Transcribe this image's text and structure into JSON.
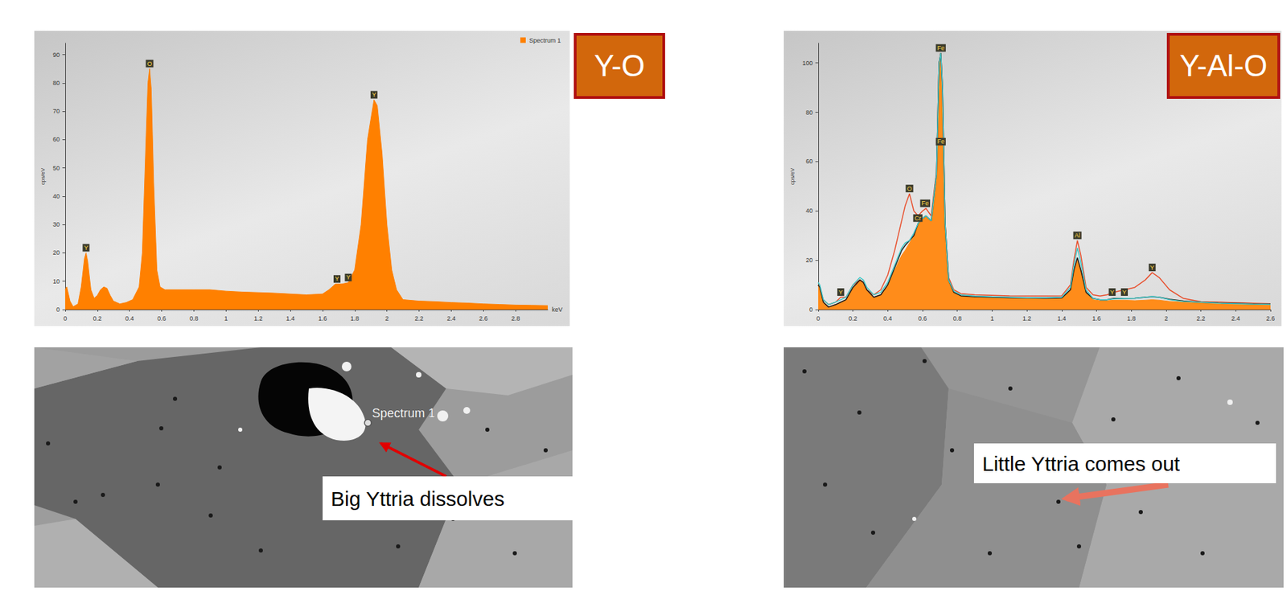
{
  "chart_data": [
    {
      "type": "line",
      "title": "Y-O",
      "x_label": "keV",
      "y_label": "cps/eV",
      "x": [
        0,
        0.01,
        0.03,
        0.05,
        0.08,
        0.1,
        0.12,
        0.13,
        0.14,
        0.16,
        0.18,
        0.2,
        0.22,
        0.24,
        0.26,
        0.28,
        0.3,
        0.34,
        0.38,
        0.42,
        0.46,
        0.48,
        0.5,
        0.515,
        0.525,
        0.535,
        0.55,
        0.57,
        0.59,
        0.62,
        0.7,
        0.8,
        0.9,
        1.0,
        1.1,
        1.2,
        1.3,
        1.4,
        1.5,
        1.6,
        1.64,
        1.68,
        1.72,
        1.76,
        1.8,
        1.84,
        1.88,
        1.92,
        1.94,
        1.97,
        2.0,
        2.03,
        2.06,
        2.1,
        2.2,
        2.3,
        2.4,
        2.5,
        2.6,
        2.7,
        2.8,
        2.9,
        3.0
      ],
      "series": [
        {
          "name": "Spectrum 1",
          "color": "#ff8000",
          "type": "area",
          "values": [
            7,
            8,
            3,
            1,
            2,
            8,
            18,
            20,
            17,
            7,
            4,
            5,
            7,
            8,
            7.5,
            5,
            3,
            2,
            2.5,
            3.5,
            8,
            20,
            55,
            80,
            85,
            78,
            45,
            14,
            8,
            7,
            7,
            7,
            7,
            6.5,
            6.2,
            6,
            5.8,
            5.5,
            5.2,
            5.5,
            7,
            9,
            9,
            9.5,
            14,
            30,
            60,
            74,
            72,
            55,
            30,
            14,
            7,
            3.5,
            3,
            2.8,
            2.5,
            2.3,
            2,
            1.8,
            1.6,
            1.5,
            1.4
          ]
        }
      ],
      "xlim": [
        0,
        3
      ],
      "xticks": [
        0,
        0.2,
        0.4,
        0.6,
        0.8,
        1,
        1.2,
        1.4,
        1.6,
        1.8,
        2,
        2.2,
        2.4,
        2.6,
        2.8
      ],
      "ylim": [
        0,
        94
      ],
      "yticks": [
        0,
        10,
        20,
        30,
        40,
        50,
        60,
        70,
        80,
        90
      ],
      "grid": false,
      "legend": "upper right",
      "peak_labels": [
        {
          "x": 0.13,
          "y": 20,
          "label": "Y"
        },
        {
          "x": 0.525,
          "y": 85,
          "label": "O"
        },
        {
          "x": 1.69,
          "y": 9,
          "label": "Y"
        },
        {
          "x": 1.76,
          "y": 9.5,
          "label": "Y"
        },
        {
          "x": 1.92,
          "y": 74,
          "label": "Y"
        }
      ]
    },
    {
      "type": "line",
      "title": "Y-Al-O",
      "y_label": "cps/eV",
      "x": [
        0,
        0.01,
        0.03,
        0.06,
        0.1,
        0.13,
        0.16,
        0.2,
        0.24,
        0.26,
        0.28,
        0.32,
        0.36,
        0.4,
        0.44,
        0.48,
        0.5,
        0.525,
        0.55,
        0.575,
        0.6,
        0.62,
        0.65,
        0.68,
        0.695,
        0.705,
        0.715,
        0.73,
        0.75,
        0.78,
        0.82,
        0.9,
        1.0,
        1.1,
        1.2,
        1.3,
        1.4,
        1.45,
        1.47,
        1.49,
        1.51,
        1.54,
        1.58,
        1.62,
        1.66,
        1.7,
        1.76,
        1.82,
        1.88,
        1.92,
        1.96,
        2.02,
        2.1,
        2.2,
        2.3,
        2.4,
        2.5,
        2.6
      ],
      "series": [
        {
          "color": "#ff8c1a",
          "type": "area",
          "values": [
            10,
            9,
            3,
            1,
            2,
            3,
            4,
            9,
            12,
            11,
            8,
            5,
            6,
            10,
            16,
            22,
            24,
            27,
            30,
            35,
            37,
            38,
            36,
            55,
            100,
            104,
            90,
            35,
            12,
            7,
            5.5,
            5,
            4.8,
            4.6,
            4.5,
            4.4,
            4.5,
            8,
            15,
            20,
            16,
            7,
            4,
            3.6,
            3.6,
            3.8,
            3.8,
            3.6,
            3.8,
            4,
            3.8,
            3.3,
            3,
            2.7,
            2.5,
            2.3,
            2.1,
            2
          ]
        },
        {
          "color": "#e8502e",
          "type": "line",
          "values": [
            10,
            9,
            4,
            2,
            3,
            5,
            5,
            10,
            12,
            11,
            8,
            6,
            8,
            14,
            24,
            36,
            42,
            47,
            40,
            38,
            40,
            41,
            38,
            56,
            100,
            104,
            88,
            35,
            13,
            8,
            6.5,
            6,
            5.8,
            5.6,
            5.5,
            5.5,
            5.6,
            10,
            20,
            28,
            22,
            9,
            6,
            5.5,
            6,
            7,
            8,
            9,
            12,
            15,
            13,
            8,
            4.5,
            3.2,
            3,
            2.8,
            2.6,
            2.4
          ]
        },
        {
          "color": "#1a1a1a",
          "type": "line",
          "values": [
            10,
            9,
            3,
            1,
            2,
            3,
            4,
            9,
            12,
            11,
            8,
            5,
            6,
            10,
            17,
            24,
            26,
            28,
            30,
            35,
            37,
            38,
            36,
            55,
            100,
            104,
            90,
            35,
            12,
            7,
            5.6,
            5.2,
            5,
            4.8,
            4.7,
            4.6,
            4.7,
            8,
            16,
            21,
            16,
            7,
            4.5,
            4,
            4,
            4.5,
            4.5,
            4.6,
            5,
            5.2,
            5,
            4.2,
            3.5,
            3,
            2.7,
            2.5,
            2.3,
            2.2
          ]
        },
        {
          "color": "#40c8c8",
          "type": "line",
          "values": [
            11,
            10,
            4,
            2,
            3,
            4,
            5,
            10,
            13,
            12,
            9,
            6,
            7,
            11,
            18,
            25,
            27,
            28,
            31,
            35,
            37,
            38,
            36,
            55,
            100,
            104,
            89,
            35,
            12,
            7.5,
            6,
            5.5,
            5.2,
            5,
            4.8,
            4.8,
            5,
            9,
            18,
            25,
            19,
            8,
            4.5,
            4,
            4,
            4.3,
            4.5,
            4.6,
            5,
            5.3,
            5,
            4,
            3.3,
            3,
            2.6,
            2.4,
            2.2,
            2.1
          ]
        }
      ],
      "xlim": [
        0,
        2.6
      ],
      "xticks": [
        0,
        0.2,
        0.4,
        0.6,
        0.8,
        1,
        1.2,
        1.4,
        1.6,
        1.8,
        2,
        2.2,
        2.4,
        2.6
      ],
      "ylim": [
        0,
        108
      ],
      "yticks": [
        0,
        20,
        40,
        60,
        80,
        100
      ],
      "grid": false,
      "peak_labels": [
        {
          "x": 0.13,
          "y": 5,
          "label": "Y"
        },
        {
          "x": 0.525,
          "y": 47,
          "label": "O"
        },
        {
          "x": 0.573,
          "y": 35,
          "label": "Cr"
        },
        {
          "x": 0.615,
          "y": 41,
          "label": "Fe"
        },
        {
          "x": 0.705,
          "y": 66,
          "label": "Fe"
        },
        {
          "x": 0.705,
          "y": 104,
          "label": "Fe"
        },
        {
          "x": 1.49,
          "y": 28,
          "label": "Al"
        },
        {
          "x": 1.69,
          "y": 5,
          "label": "Y"
        },
        {
          "x": 1.76,
          "y": 5,
          "label": "Y"
        },
        {
          "x": 1.92,
          "y": 15,
          "label": "Y"
        }
      ]
    }
  ],
  "images": [
    {
      "spectrum_label": "Spectrum 1",
      "annotation": "Big Yttria dissolves"
    },
    {
      "annotation": "Little Yttria comes out"
    }
  ]
}
